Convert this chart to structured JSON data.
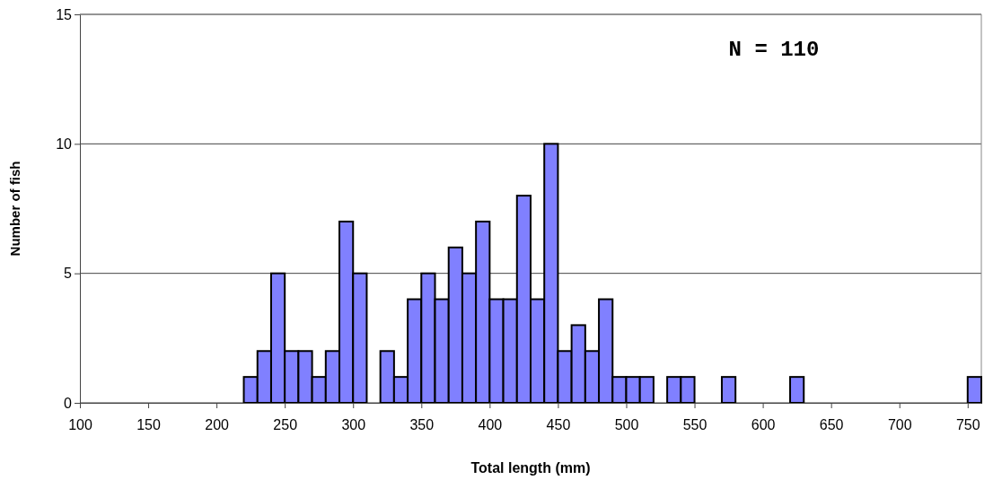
{
  "chart_data": {
    "type": "histogram",
    "xlabel": "Total length (mm)",
    "ylabel": "Number of fish",
    "annotations": [
      "N = 110"
    ],
    "bins": [
      220,
      230,
      240,
      250,
      260,
      270,
      280,
      290,
      300,
      310,
      320,
      330,
      340,
      350,
      360,
      370,
      380,
      390,
      400,
      410,
      420,
      430,
      440,
      450,
      460,
      470,
      480,
      490,
      500,
      510,
      520,
      530,
      540,
      550,
      560,
      570,
      580,
      590,
      600,
      610,
      620,
      630,
      640,
      650,
      660,
      670,
      680,
      690,
      700,
      710,
      720,
      730,
      740,
      750,
      760
    ],
    "values": [
      1,
      2,
      5,
      2,
      2,
      1,
      2,
      7,
      5,
      0,
      2,
      1,
      4,
      5,
      4,
      6,
      5,
      7,
      4,
      4,
      8,
      4,
      10,
      2,
      3,
      2,
      4,
      1,
      1,
      1,
      0,
      1,
      1,
      0,
      0,
      1,
      0,
      0,
      0,
      0,
      1,
      0,
      0,
      0,
      0,
      0,
      0,
      0,
      0,
      0,
      0,
      0,
      0,
      1
    ],
    "color": "#8080ff",
    "xlim": [
      100,
      760
    ],
    "xticks": [
      100,
      150,
      200,
      250,
      300,
      350,
      400,
      450,
      500,
      550,
      600,
      650,
      700,
      750
    ],
    "ylim": [
      0,
      15
    ],
    "yticks": [
      0,
      5,
      10,
      15
    ],
    "grid": "y"
  }
}
